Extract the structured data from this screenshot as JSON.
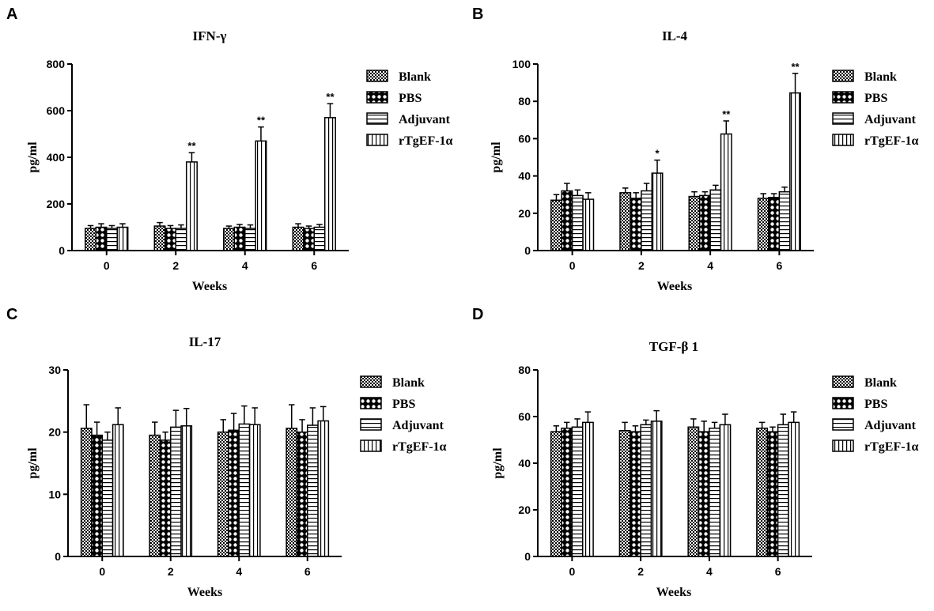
{
  "legend": [
    "Blank",
    "PBS",
    "Adjuvant",
    "rTgEF-1α"
  ],
  "patterns": [
    "pat-blank",
    "pat-pbs",
    "pat-adj",
    "pat-rtg"
  ],
  "chart_data": [
    {
      "panel": "A",
      "type": "bar",
      "title": "IFN-γ",
      "xlabel": "Weeks",
      "ylabel": "pg/ml",
      "categories": [
        "0",
        "2",
        "4",
        "6"
      ],
      "ylim": [
        0,
        800
      ],
      "yticks": [
        0,
        200,
        400,
        600,
        800
      ],
      "legend_position": "right",
      "series": [
        {
          "name": "Blank",
          "values": [
            95,
            105,
            95,
            100
          ],
          "errors": [
            12,
            15,
            10,
            15
          ]
        },
        {
          "name": "PBS",
          "values": [
            100,
            95,
            100,
            95
          ],
          "errors": [
            15,
            12,
            12,
            10
          ]
        },
        {
          "name": "Adjuvant",
          "values": [
            95,
            95,
            95,
            100
          ],
          "errors": [
            12,
            15,
            15,
            12
          ]
        },
        {
          "name": "rTgEF-1α",
          "values": [
            100,
            380,
            470,
            570
          ],
          "errors": [
            15,
            40,
            60,
            60
          ]
        }
      ],
      "annotations": [
        {
          "category": "2",
          "series": "rTgEF-1α",
          "text": "**"
        },
        {
          "category": "4",
          "series": "rTgEF-1α",
          "text": "**"
        },
        {
          "category": "6",
          "series": "rTgEF-1α",
          "text": "**"
        }
      ]
    },
    {
      "panel": "B",
      "type": "bar",
      "title": "IL-4",
      "xlabel": "Weeks",
      "ylabel": "pg/ml",
      "categories": [
        "0",
        "2",
        "4",
        "6"
      ],
      "ylim": [
        0,
        100
      ],
      "yticks": [
        0,
        20,
        40,
        60,
        80,
        100
      ],
      "legend_position": "right",
      "series": [
        {
          "name": "Blank",
          "values": [
            27,
            31,
            29,
            28
          ],
          "errors": [
            3,
            2.5,
            2.5,
            2.5
          ]
        },
        {
          "name": "PBS",
          "values": [
            32,
            28,
            29.5,
            28.5
          ],
          "errors": [
            4,
            3,
            2,
            2
          ]
        },
        {
          "name": "Adjuvant",
          "values": [
            29.5,
            32,
            32.5,
            31.5
          ],
          "errors": [
            3,
            4,
            2.5,
            2.5
          ]
        },
        {
          "name": "rTgEF-1α",
          "values": [
            27.5,
            41.5,
            62.5,
            84.5
          ],
          "errors": [
            3.5,
            7,
            7,
            10.5
          ]
        }
      ],
      "annotations": [
        {
          "category": "2",
          "series": "rTgEF-1α",
          "text": "*"
        },
        {
          "category": "4",
          "series": "rTgEF-1α",
          "text": "**"
        },
        {
          "category": "6",
          "series": "rTgEF-1α",
          "text": "**"
        }
      ]
    },
    {
      "panel": "C",
      "type": "bar",
      "title": "IL-17",
      "xlabel": "Weeks",
      "ylabel": "pg/ml",
      "categories": [
        "0",
        "2",
        "4",
        "6"
      ],
      "ylim": [
        0,
        30
      ],
      "yticks": [
        0,
        10,
        20,
        30
      ],
      "legend_position": "right",
      "series": [
        {
          "name": "Blank",
          "values": [
            20.6,
            19.5,
            20,
            20.6
          ],
          "errors": [
            3.8,
            2.1,
            2,
            3.8
          ]
        },
        {
          "name": "PBS",
          "values": [
            19.5,
            18.7,
            20.3,
            20
          ],
          "errors": [
            2.1,
            1.3,
            2.7,
            2
          ]
        },
        {
          "name": "Adjuvant",
          "values": [
            18.7,
            20.8,
            21.3,
            21.1
          ],
          "errors": [
            1.3,
            2.7,
            2.9,
            2.8
          ]
        },
        {
          "name": "rTgEF-1α",
          "values": [
            21.2,
            21,
            21.2,
            21.8
          ],
          "errors": [
            2.7,
            2.8,
            2.7,
            2.3
          ]
        }
      ],
      "annotations": []
    },
    {
      "panel": "D",
      "type": "bar",
      "title": "TGF-β 1",
      "xlabel": "Weeks",
      "ylabel": "pg/ml",
      "categories": [
        "0",
        "2",
        "4",
        "6"
      ],
      "ylim": [
        0,
        80
      ],
      "yticks": [
        0,
        20,
        40,
        60,
        80
      ],
      "legend_position": "right",
      "series": [
        {
          "name": "Blank",
          "values": [
            53.5,
            54,
            55.5,
            55
          ],
          "errors": [
            2.5,
            3.5,
            3.5,
            2.5
          ]
        },
        {
          "name": "PBS",
          "values": [
            55,
            53.5,
            53.5,
            53.5
          ],
          "errors": [
            2.5,
            2.5,
            4.5,
            2
          ]
        },
        {
          "name": "Adjuvant",
          "values": [
            55.5,
            56.5,
            55,
            56.5
          ],
          "errors": [
            3.5,
            2,
            2.5,
            4.5
          ]
        },
        {
          "name": "rTgEF-1α",
          "values": [
            57.5,
            58,
            56.5,
            57.5
          ],
          "errors": [
            4.5,
            4.5,
            4.5,
            4.5
          ]
        }
      ],
      "annotations": []
    }
  ]
}
